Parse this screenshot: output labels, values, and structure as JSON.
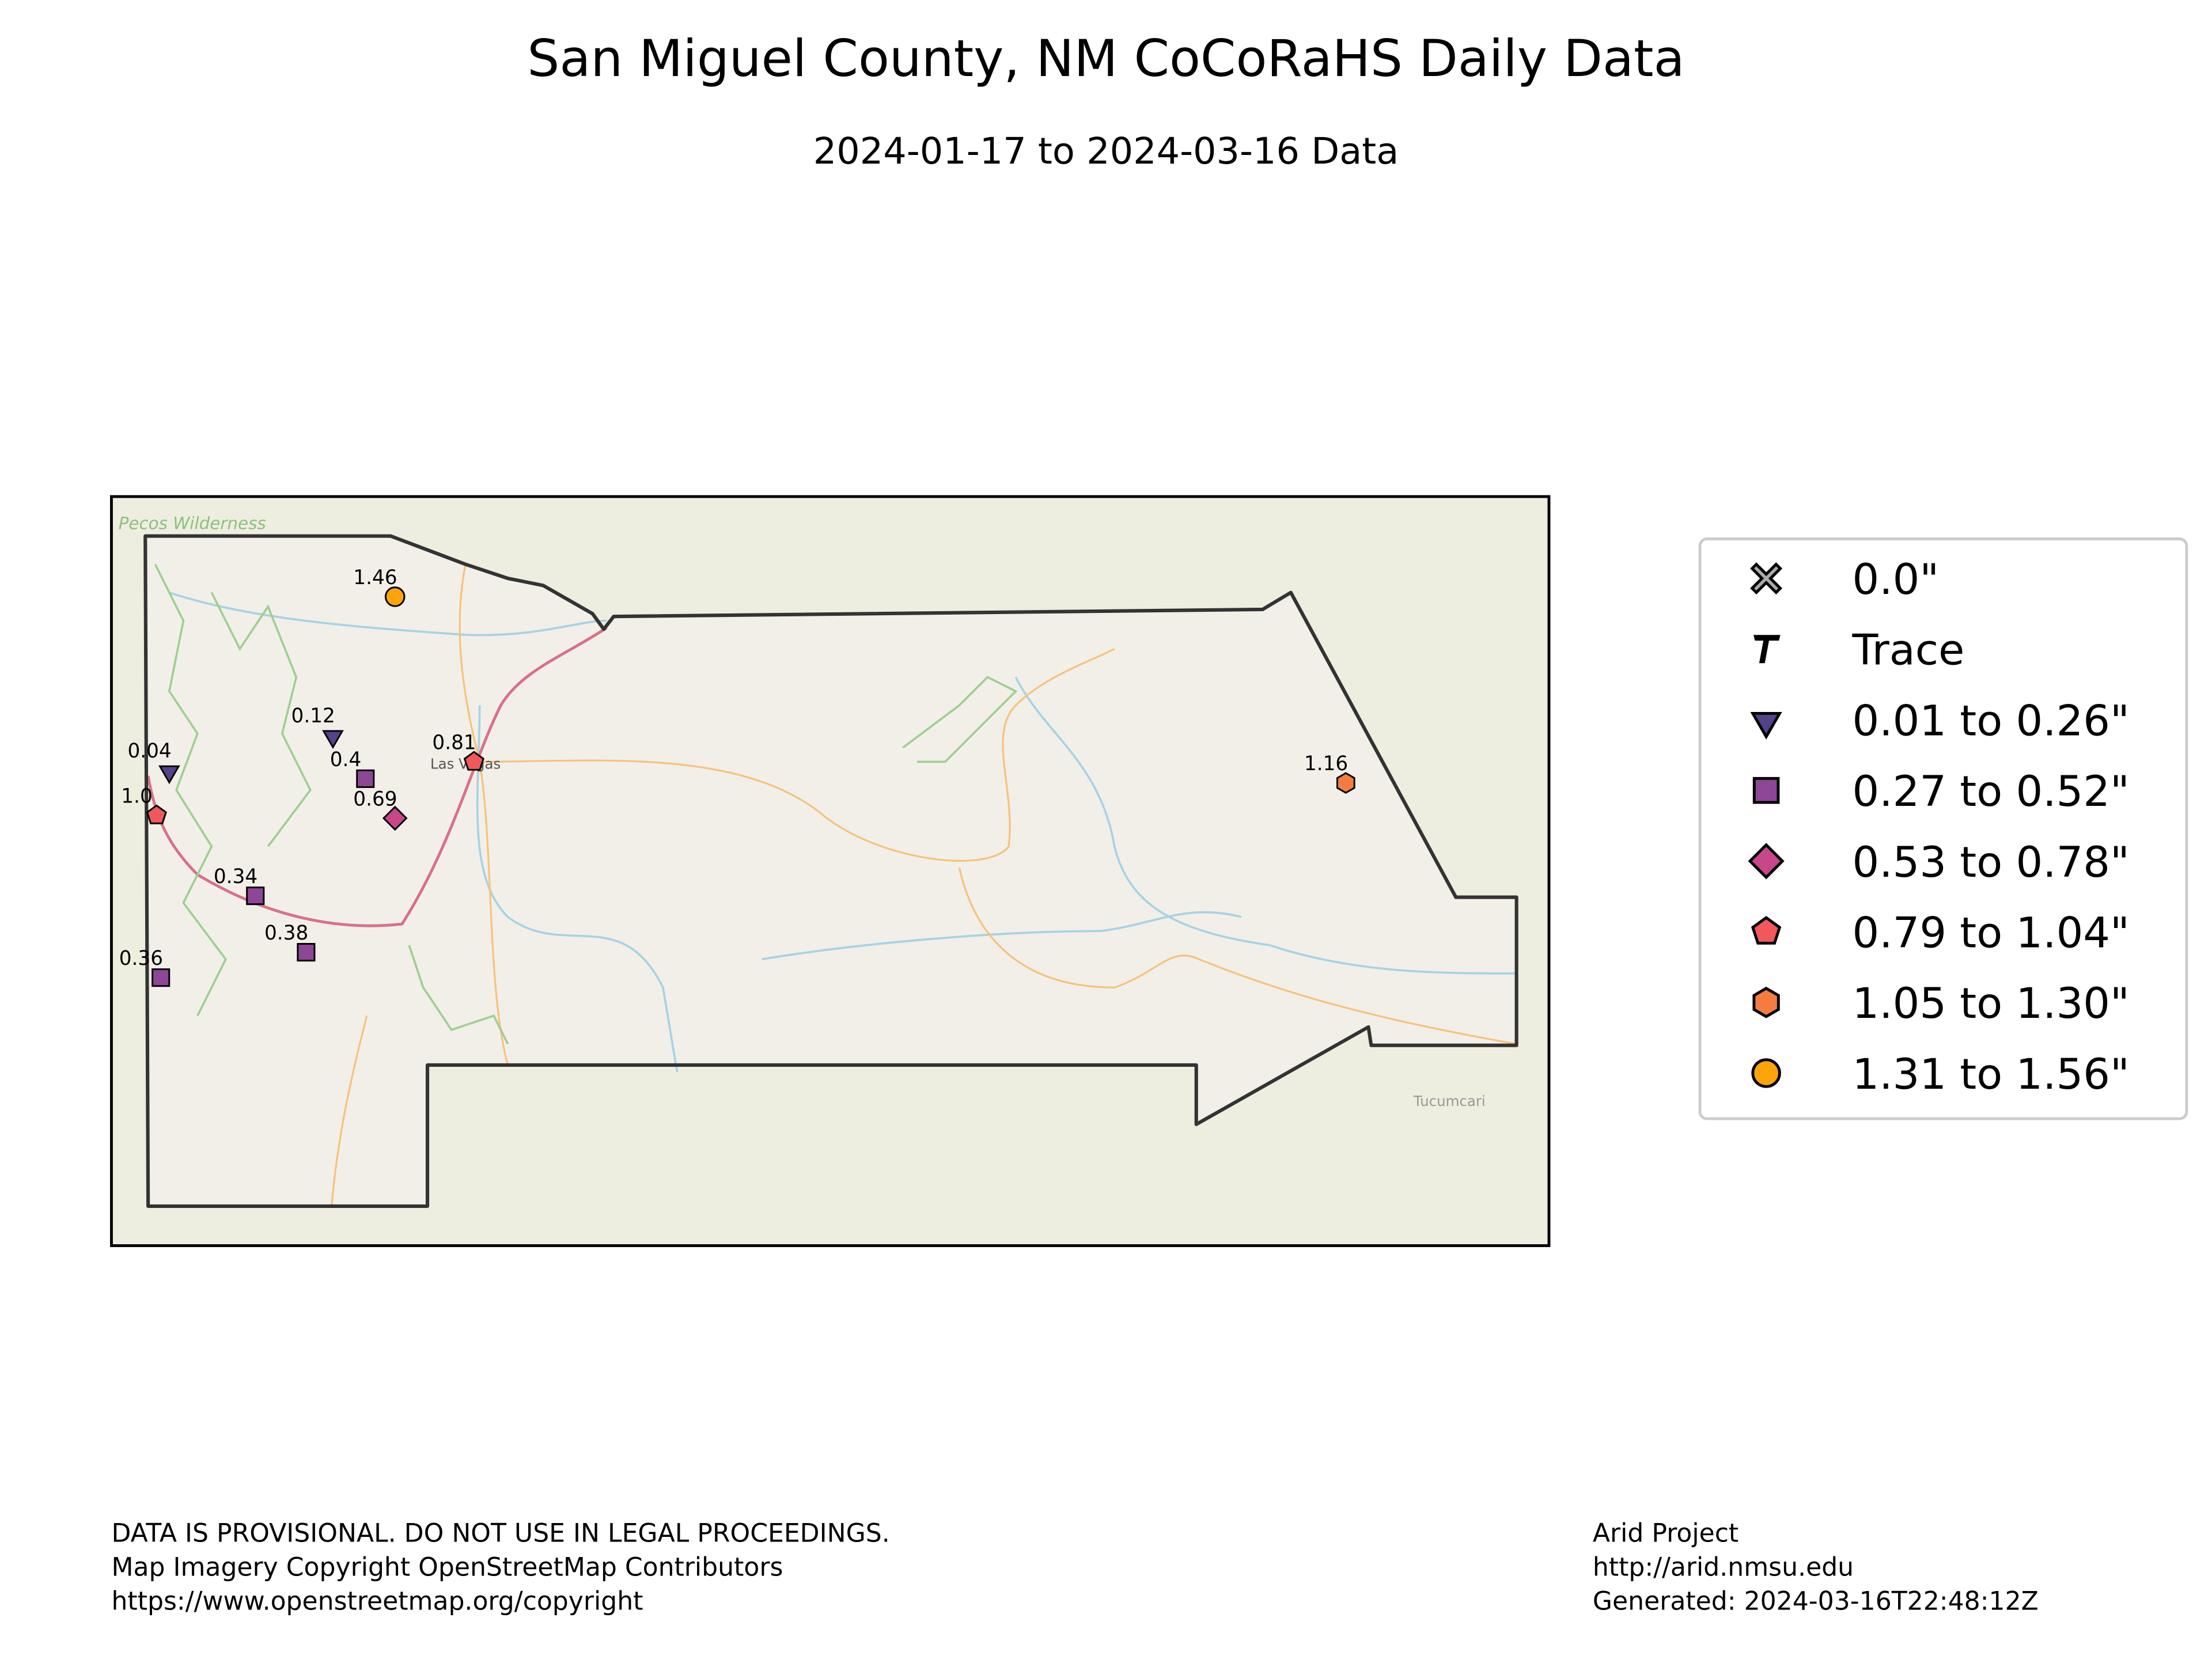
{
  "header": {
    "title": "San Miguel County, NM CoCoRaHS Daily Data",
    "subtitle": "2024-01-17 to 2024-03-16 Data"
  },
  "map_labels": [
    "Pecos Wilderness",
    "Las Vegas",
    "Tucumcari"
  ],
  "stations": [
    {
      "label": "1.46",
      "value": 1.46
    },
    {
      "label": "0.12",
      "value": 0.12
    },
    {
      "label": "0.04",
      "value": 0.04
    },
    {
      "label": "0.4",
      "value": 0.4
    },
    {
      "label": "0.81",
      "value": 0.81
    },
    {
      "label": "0.69",
      "value": 0.69
    },
    {
      "label": "1.0",
      "value": 1
    },
    {
      "label": "0.34",
      "value": 0.34
    },
    {
      "label": "0.38",
      "value": 0.38
    },
    {
      "label": "0.36",
      "value": 0.36
    },
    {
      "label": "1.16",
      "value": 1.16
    }
  ],
  "legend": [
    "0.0\"",
    "Trace",
    "0.01 to 0.26\"",
    "0.27 to 0.52\"",
    "0.53 to 0.78\"",
    "0.79 to 1.04\"",
    "1.05 to 1.30\"",
    "1.31 to 1.56\""
  ],
  "footer": {
    "left": [
      "DATA IS PROVISIONAL. DO NOT USE IN LEGAL PROCEEDINGS.",
      "Map Imagery Copyright OpenStreetMap Contributors",
      "https://www.openstreetmap.org/copyright"
    ],
    "right": [
      "Arid Project",
      "http://arid.nmsu.edu",
      "Generated: 2024-03-16T22:48:12Z"
    ]
  }
}
